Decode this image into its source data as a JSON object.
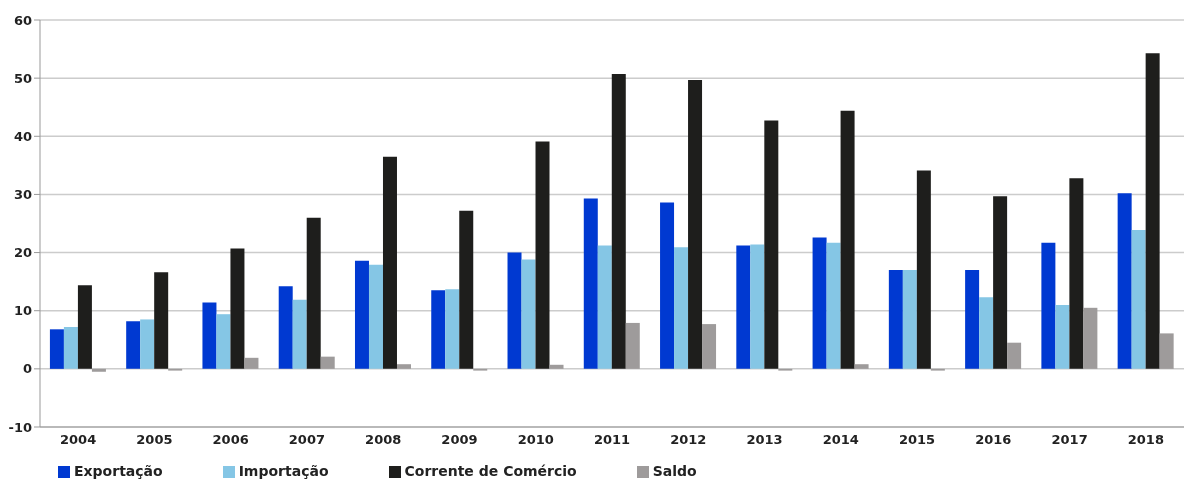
{
  "chart_data": {
    "type": "bar",
    "categories": [
      "2004",
      "2005",
      "2006",
      "2007",
      "2008",
      "2009",
      "2010",
      "2011",
      "2012",
      "2013",
      "2014",
      "2015",
      "2016",
      "2017",
      "2018"
    ],
    "series": [
      {
        "name": "Exportação",
        "color": "#0039d1",
        "values": [
          6.8,
          8.2,
          11.4,
          14.2,
          18.6,
          13.5,
          20.0,
          29.3,
          28.6,
          21.2,
          22.6,
          17.0,
          17.0,
          21.7,
          30.2
        ]
      },
      {
        "name": "Importação",
        "color": "#85c6e5",
        "values": [
          7.2,
          8.5,
          9.4,
          11.9,
          17.9,
          13.7,
          18.8,
          21.2,
          20.9,
          21.4,
          21.7,
          17.0,
          12.3,
          11.0,
          23.9
        ]
      },
      {
        "name": "Corrente de Comércio",
        "color": "#1e1e1c",
        "values": [
          14.4,
          16.6,
          20.7,
          26.0,
          36.5,
          27.2,
          39.1,
          50.7,
          49.7,
          42.7,
          44.4,
          34.1,
          29.7,
          32.8,
          54.3
        ]
      },
      {
        "name": "Saldo",
        "color": "#9e9b9b",
        "values": [
          -0.5,
          -0.3,
          1.9,
          2.1,
          0.8,
          -0.3,
          0.7,
          7.9,
          7.7,
          -0.3,
          0.8,
          -0.3,
          4.5,
          10.5,
          6.1
        ]
      }
    ],
    "ylim": [
      -10,
      60
    ],
    "yticks": [
      -10,
      0,
      10,
      20,
      30,
      40,
      50,
      60
    ],
    "grid": "y",
    "legend": "bottom left"
  }
}
